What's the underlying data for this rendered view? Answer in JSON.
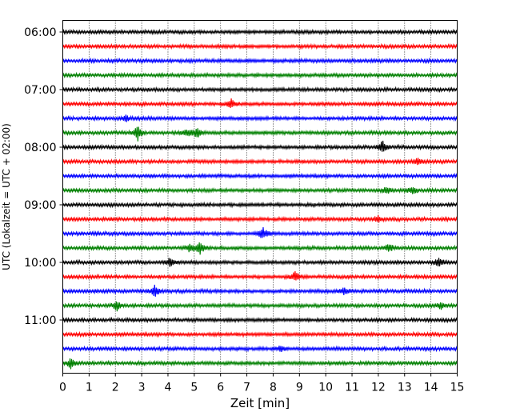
{
  "chart_data": {
    "type": "line",
    "xlabel": "Zeit  [min]",
    "ylabel": "UTC (Lokalzeit = UTC + 02:00)",
    "xlim": [
      0,
      15
    ],
    "x_ticks": [
      "0",
      "1",
      "2",
      "3",
      "4",
      "5",
      "6",
      "7",
      "8",
      "9",
      "10",
      "11",
      "12",
      "13",
      "14",
      "15"
    ],
    "y_ticks": [
      "06:00",
      "07:00",
      "08:00",
      "09:00",
      "10:00",
      "11:00"
    ],
    "grid": "vertical-dotted",
    "trace_interval_min": 15,
    "trace_colors": [
      "#000000",
      "#ff0000",
      "#0000ff",
      "#008000"
    ],
    "trace_start_times": [
      "06:00",
      "06:15",
      "06:30",
      "06:45",
      "07:00",
      "07:15",
      "07:30",
      "07:45",
      "08:00",
      "08:15",
      "08:30",
      "08:45",
      "09:00",
      "09:15",
      "09:30",
      "09:45",
      "10:00",
      "10:15",
      "10:30",
      "10:45",
      "11:00",
      "11:15",
      "11:30",
      "11:45"
    ],
    "events": [
      {
        "trace": 5,
        "t": 6.4,
        "amp": 1.6
      },
      {
        "trace": 6,
        "t": 2.4,
        "amp": 1.0
      },
      {
        "trace": 7,
        "t": 2.85,
        "amp": 2.4
      },
      {
        "trace": 7,
        "t": 5.1,
        "amp": 1.6
      },
      {
        "trace": 7,
        "t": 4.7,
        "amp": 1.2
      },
      {
        "trace": 8,
        "t": 12.15,
        "amp": 2.0
      },
      {
        "trace": 9,
        "t": 13.5,
        "amp": 1.0
      },
      {
        "trace": 11,
        "t": 12.3,
        "amp": 1.2
      },
      {
        "trace": 11,
        "t": 13.3,
        "amp": 1.0
      },
      {
        "trace": 13,
        "t": 12.0,
        "amp": 1.0
      },
      {
        "trace": 14,
        "t": 7.6,
        "amp": 2.0
      },
      {
        "trace": 15,
        "t": 5.2,
        "amp": 2.2
      },
      {
        "trace": 15,
        "t": 12.4,
        "amp": 1.6
      },
      {
        "trace": 15,
        "t": 4.8,
        "amp": 1.0
      },
      {
        "trace": 16,
        "t": 4.1,
        "amp": 1.6
      },
      {
        "trace": 16,
        "t": 14.3,
        "amp": 1.4
      },
      {
        "trace": 17,
        "t": 8.85,
        "amp": 1.6
      },
      {
        "trace": 18,
        "t": 3.5,
        "amp": 1.6
      },
      {
        "trace": 18,
        "t": 10.7,
        "amp": 1.0
      },
      {
        "trace": 19,
        "t": 2.05,
        "amp": 1.6
      },
      {
        "trace": 19,
        "t": 14.4,
        "amp": 1.0
      },
      {
        "trace": 22,
        "t": 8.3,
        "amp": 1.0
      },
      {
        "trace": 23,
        "t": 0.3,
        "amp": 1.6
      }
    ]
  }
}
